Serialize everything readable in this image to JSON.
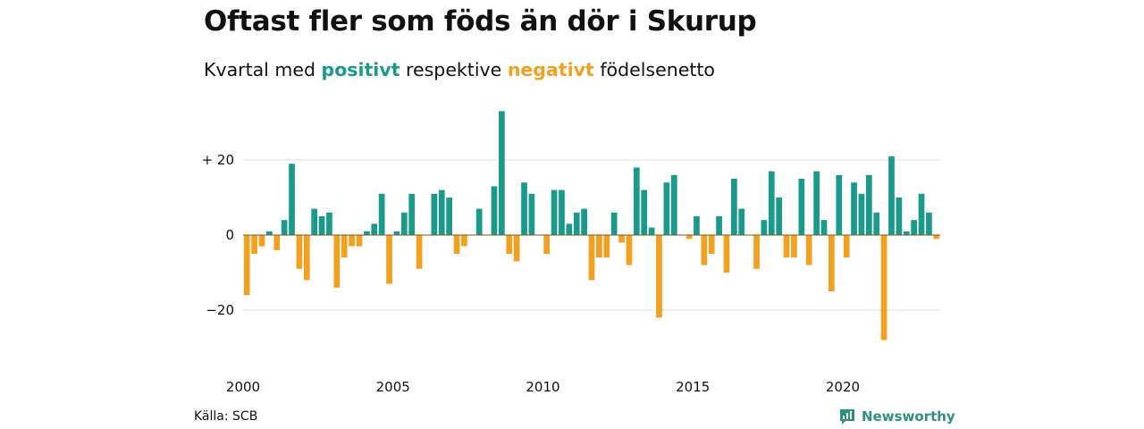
{
  "title": "Oftast fler som föds än dör i Skurup",
  "subtitle": {
    "prefix": "Kvartal med",
    "positive_word": "positivt",
    "middle": "respektive",
    "negative_word": "negativt",
    "suffix": "födelsenetto"
  },
  "source": "Källa: SCB",
  "brand": {
    "name": "Newsworthy",
    "logo_icon": "newsworthy-logo-icon"
  },
  "colors": {
    "positive": "#1a9a8a",
    "negative": "#f2a01f",
    "grid": "#dddddd",
    "zero_line": "#7a5a1a",
    "brand": "#2d9182"
  },
  "chart_data": {
    "type": "bar",
    "title": "Oftast fler som föds än dör i Skurup",
    "subtitle": "Kvartal med positivt respektive negativt födelsenetto",
    "xlabel": "",
    "ylabel": "",
    "ylim": [
      -32,
      34
    ],
    "yticks": [
      20,
      0,
      -20
    ],
    "ytick_labels": [
      "+ 20",
      "0",
      "−20"
    ],
    "xtick_years": [
      2000,
      2005,
      2010,
      2015,
      2020
    ],
    "xtick_labels": [
      "2000",
      "2005",
      "2010",
      "2015",
      "2020"
    ],
    "grid": true,
    "start": "2000 Q1",
    "frequency": "quarter",
    "values": [
      -16,
      -5,
      -3,
      1,
      -4,
      4,
      19,
      -9,
      -12,
      7,
      5,
      6,
      -14,
      -6,
      -3,
      -3,
      1,
      3,
      11,
      -13,
      1,
      6,
      11,
      -9,
      0,
      11,
      12,
      10,
      -5,
      -3,
      0,
      7,
      0,
      13,
      33,
      -5,
      -7,
      14,
      11,
      0,
      -5,
      12,
      12,
      3,
      6,
      7,
      -12,
      -6,
      -6,
      6,
      -2,
      -8,
      18,
      12,
      2,
      -22,
      14,
      16,
      0,
      -1,
      5,
      -8,
      -5,
      5,
      -10,
      15,
      7,
      0,
      -9,
      4,
      17,
      10,
      -6,
      -6,
      15,
      -8,
      17,
      4,
      -15,
      16,
      -6,
      14,
      11,
      16,
      6,
      -28,
      21,
      10,
      1,
      4,
      11,
      6,
      -1
    ]
  }
}
